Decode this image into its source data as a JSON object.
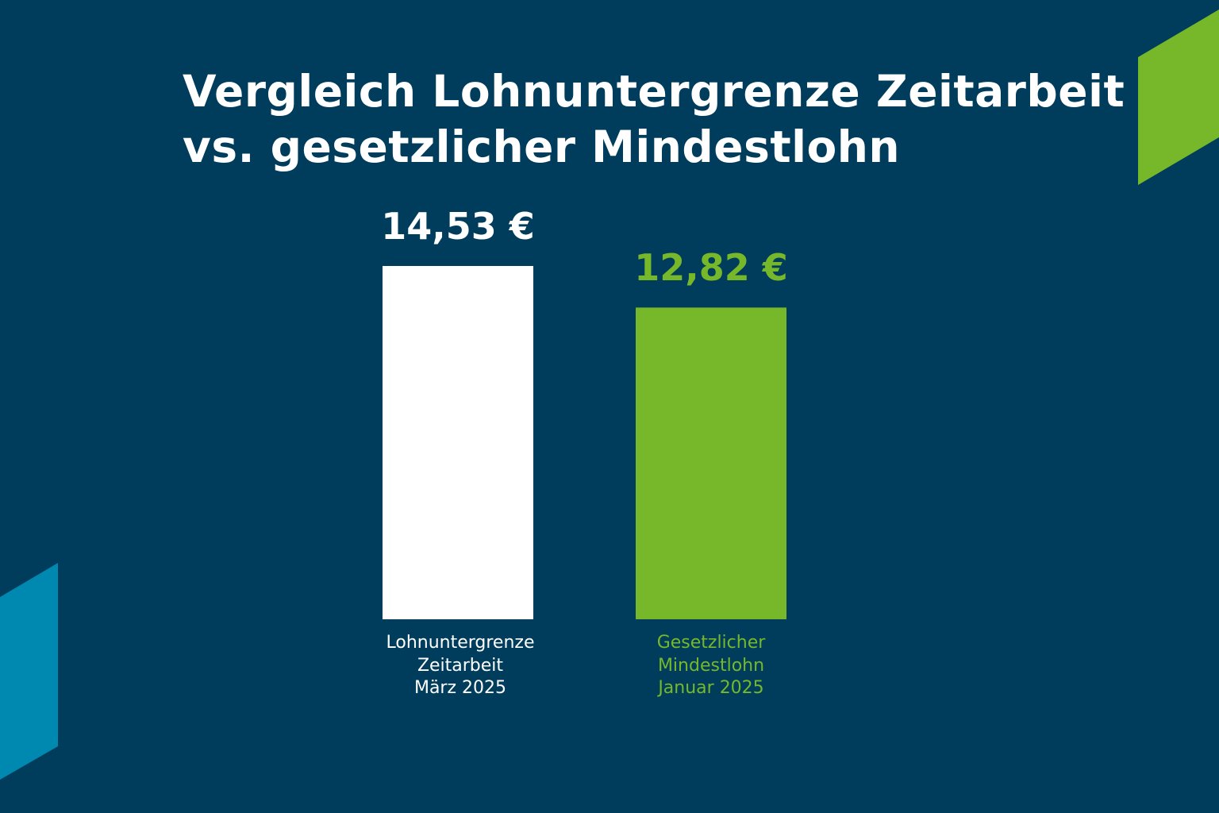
{
  "title_line1": "Vergleich Lohnuntergrenze Zeitarbeit",
  "title_line2": "vs. gesetzlicher Mindestlohn",
  "colors": {
    "background": "#003d5c",
    "green": "#76b82a",
    "white": "#ffffff",
    "blue": "#0089b0"
  },
  "chart_data": {
    "type": "bar",
    "title": "Vergleich Lohnuntergrenze Zeitarbeit vs. gesetzlicher Mindestlohn",
    "categories": [
      "Lohnuntergrenze Zeitarbeit März 2025",
      "Gesetzlicher Mindestlohn Januar 2025"
    ],
    "category_lines": [
      [
        "Lohnuntergrenze",
        "Zeitarbeit",
        "März 2025"
      ],
      [
        "Gesetzlicher",
        "Mindestlohn",
        "Januar 2025"
      ]
    ],
    "values": [
      14.53,
      12.82
    ],
    "value_labels": [
      "14,53 €",
      "12,82 €"
    ],
    "bar_colors": [
      "#ffffff",
      "#76b82a"
    ],
    "unit": "€",
    "ylim": [
      0,
      14.53
    ],
    "grid": false,
    "legend": "none"
  }
}
